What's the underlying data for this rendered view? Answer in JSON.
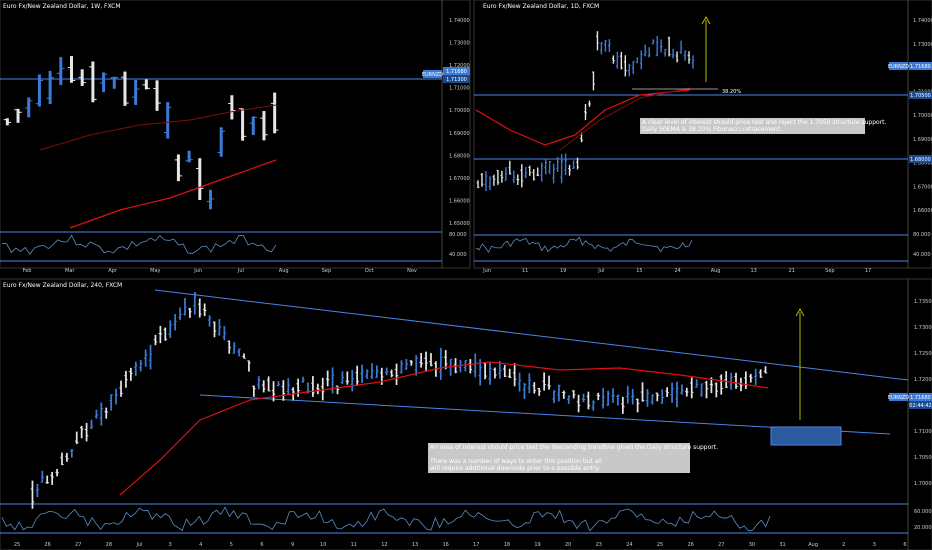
{
  "colors": {
    "background": "#000000",
    "up_bar": "#3b7bd8",
    "down_bar": "#e6e6e6",
    "ema_line": "#e01010",
    "sma_line": "#7a1010",
    "structure_line": "#4a86e8",
    "arrow": "#b8b800",
    "rsi_line": "#5a8ec8",
    "price_tag": "#3b7bd8",
    "zone_fill": "#2b5a9e"
  },
  "panels": [
    {
      "title": "Euro Fx/New Zealand Dollar, 1W, FXCM",
      "price_ticks": [
        "1.74000",
        "1.73000",
        "1.72000",
        "1.71000",
        "1.70000",
        "1.69000",
        "1.68000",
        "1.67000",
        "1.66000",
        "1.65000"
      ],
      "rsi_ticks": [
        "80.000",
        "40.000"
      ],
      "x_ticks": [
        "Feb",
        "Mar",
        "Apr",
        "May",
        "Jun",
        "Jul",
        "Aug",
        "Sep",
        "Oct",
        "Nov"
      ],
      "tags": [
        {
          "text": "EURNZD"
        },
        {
          "text": "1.71680"
        },
        {
          "text": "1.71300"
        }
      ],
      "annotations": []
    },
    {
      "title": "Euro Fx/New Zealand Dollar, 1D, FXCM",
      "price_ticks": [
        "1.74000",
        "1.73000",
        "1.72000",
        "1.71000",
        "1.70000",
        "1.69000",
        "1.68000",
        "1.67000",
        "1.66000"
      ],
      "rsi_ticks": [
        "80.000",
        "40.000"
      ],
      "x_ticks": [
        "Jun",
        "11",
        "19",
        "Jul",
        "15",
        "24",
        "Aug",
        "13",
        "21",
        "Sep",
        "17"
      ],
      "tags": [
        {
          "text": "EURNZD"
        },
        {
          "text": "1.71680"
        },
        {
          "text": "1.70500"
        },
        {
          "text": "1.68000"
        }
      ],
      "annotations": [
        {
          "text": "38.20%"
        },
        {
          "lines": [
            "A clear level of interest should price test and reject the 1.7050 structure support.",
            "Daily 50EMA & 38.20% Fibonacci retracement."
          ]
        }
      ]
    },
    {
      "title": "Euro Fx/New Zealand Dollar, 240, FXCM",
      "price_ticks": [
        "1.73500",
        "1.73000",
        "1.72500",
        "1.72000",
        "1.71500",
        "1.71000",
        "1.70500",
        "1.70000"
      ],
      "rsi_ticks": [
        "60.000",
        "20.000"
      ],
      "x_ticks": [
        "25",
        "26",
        "27",
        "28",
        "Jul",
        "3",
        "4",
        "5",
        "6",
        "9",
        "10",
        "11",
        "12",
        "13",
        "16",
        "17",
        "18",
        "19",
        "20",
        "23",
        "24",
        "25",
        "26",
        "27",
        "30",
        "31",
        "Aug",
        "2",
        "3",
        "6"
      ],
      "tags": [
        {
          "text": "EURNZD"
        },
        {
          "text": "1.71680"
        },
        {
          "text": "02:44:42"
        }
      ],
      "annotations": [
        {
          "lines": [
            "An area of interest should price test the descending trendline given the Daily structure support.",
            "",
            "There was a number of ways to enter this position but all",
            "will require additional downside prior to a possible entry."
          ]
        }
      ]
    }
  ]
}
